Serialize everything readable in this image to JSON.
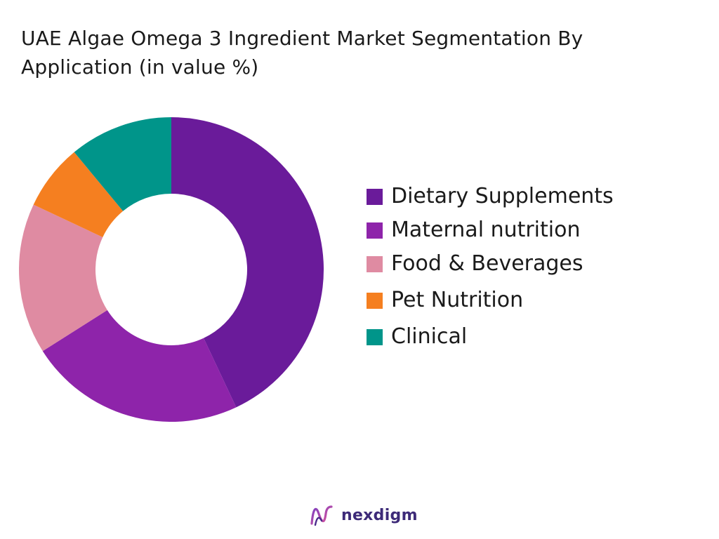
{
  "chart_data": {
    "type": "pie",
    "variant": "donut",
    "title": "UAE Algae Omega 3 Ingredient Market  Segmentation By Application (in value %)",
    "categories": [
      "Dietary Supplements",
      "Maternal nutrition",
      "Food & Beverages",
      "Pet Nutrition",
      "Clinical"
    ],
    "values": [
      43,
      23,
      16,
      7,
      11
    ],
    "colors": [
      "#6a1b9a",
      "#8e24aa",
      "#df8ba2",
      "#f57f20",
      "#00958a"
    ],
    "legend_position": "right"
  },
  "branding": {
    "name": "nexdigm",
    "icon": "nexdigm-logo-icon"
  }
}
